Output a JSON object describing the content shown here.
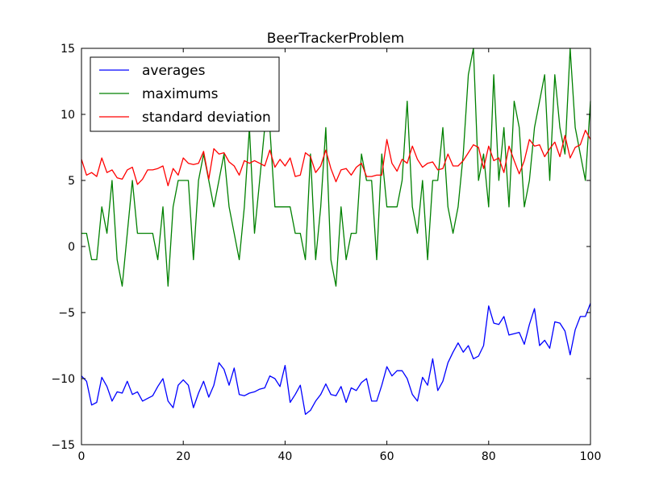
{
  "chart_data": {
    "type": "line",
    "title": "BeerTrackerProblem",
    "xlabel": "",
    "ylabel": "",
    "xlim": [
      0,
      100
    ],
    "ylim": [
      -15,
      15
    ],
    "xticks": [
      0,
      20,
      40,
      60,
      80,
      100
    ],
    "yticks": [
      -15,
      -10,
      -5,
      0,
      5,
      10,
      15
    ],
    "xtick_labels": [
      "0",
      "20",
      "40",
      "60",
      "80",
      "100"
    ],
    "ytick_labels": [
      "−15",
      "−10",
      "−5",
      "0",
      "5",
      "10",
      "15"
    ],
    "grid": false,
    "legend_position": "top-left",
    "x": [
      0,
      1,
      2,
      3,
      4,
      5,
      6,
      7,
      8,
      9,
      10,
      11,
      12,
      13,
      14,
      15,
      16,
      17,
      18,
      19,
      20,
      21,
      22,
      23,
      24,
      25,
      26,
      27,
      28,
      29,
      30,
      31,
      32,
      33,
      34,
      35,
      36,
      37,
      38,
      39,
      40,
      41,
      42,
      43,
      44,
      45,
      46,
      47,
      48,
      49,
      50,
      51,
      52,
      53,
      54,
      55,
      56,
      57,
      58,
      59,
      60,
      61,
      62,
      63,
      64,
      65,
      66,
      67,
      68,
      69,
      70,
      71,
      72,
      73,
      74,
      75,
      76,
      77,
      78,
      79,
      80,
      81,
      82,
      83,
      84,
      85,
      86,
      87,
      88,
      89,
      90,
      91,
      92,
      93,
      94,
      95,
      96,
      97,
      98,
      99,
      100
    ],
    "series": [
      {
        "name": "averages",
        "color": "#0000ff",
        "values": [
          -9.8,
          -10.2,
          -12.0,
          -11.8,
          -9.9,
          -10.6,
          -11.7,
          -11.0,
          -11.1,
          -10.2,
          -11.2,
          -11.0,
          -11.7,
          -11.5,
          -11.3,
          -10.6,
          -10.0,
          -11.7,
          -12.2,
          -10.5,
          -10.1,
          -10.5,
          -12.2,
          -11.1,
          -10.2,
          -11.4,
          -10.5,
          -8.8,
          -9.3,
          -10.5,
          -9.2,
          -11.2,
          -11.3,
          -11.1,
          -11.0,
          -10.8,
          -10.7,
          -9.8,
          -10.0,
          -10.6,
          -9.0,
          -11.8,
          -11.2,
          -10.5,
          -12.7,
          -12.4,
          -11.7,
          -11.2,
          -10.4,
          -11.2,
          -11.3,
          -10.6,
          -11.8,
          -10.7,
          -10.9,
          -10.3,
          -10.0,
          -11.7,
          -11.7,
          -10.5,
          -9.1,
          -9.8,
          -9.4,
          -9.4,
          -10.0,
          -11.2,
          -11.7,
          -9.9,
          -10.5,
          -8.5,
          -10.9,
          -10.2,
          -8.8,
          -8.0,
          -7.3,
          -8.0,
          -7.5,
          -8.5,
          -8.3,
          -7.5,
          -4.5,
          -5.8,
          -5.9,
          -5.3,
          -6.7,
          -6.6,
          -6.5,
          -7.4,
          -5.9,
          -4.7,
          -7.5,
          -7.1,
          -7.7,
          -5.7,
          -5.8,
          -6.4,
          -8.2,
          -6.3,
          -5.3,
          -5.3,
          -4.3
        ]
      },
      {
        "name": "maximums",
        "color": "#008000",
        "values": [
          1,
          1,
          -1,
          -1,
          3,
          1,
          5,
          -1,
          -3,
          1,
          5,
          1,
          1,
          1,
          1,
          -1,
          3,
          -3,
          3,
          5,
          5,
          5,
          -1,
          5,
          7,
          5,
          3,
          5,
          7,
          3,
          1,
          -1,
          3,
          9,
          1,
          5,
          9,
          9,
          3,
          3,
          3,
          3,
          1,
          1,
          -1,
          7,
          -1,
          3,
          9,
          -1,
          -3,
          3,
          -1,
          1,
          1,
          7,
          5,
          5,
          -1,
          7,
          3,
          3,
          3,
          5,
          11,
          3,
          1,
          5,
          -1,
          5,
          5,
          9,
          3,
          1,
          3,
          7,
          13,
          15,
          5,
          7,
          3,
          13,
          5,
          9,
          3,
          11,
          9,
          3,
          5,
          9,
          11,
          13,
          5,
          13,
          9,
          7,
          15,
          9,
          7,
          5,
          11
        ]
      },
      {
        "name": "standard deviation",
        "color": "#ff0000",
        "values": [
          6.6,
          5.4,
          5.6,
          5.3,
          6.7,
          5.6,
          5.8,
          5.2,
          5.1,
          5.8,
          6.0,
          4.7,
          5.1,
          5.8,
          5.8,
          5.9,
          6.1,
          4.6,
          5.9,
          5.4,
          6.7,
          6.3,
          6.2,
          6.3,
          7.2,
          5.1,
          7.4,
          7.0,
          7.1,
          6.4,
          6.1,
          5.4,
          6.5,
          6.3,
          6.5,
          6.3,
          6.1,
          7.3,
          6.0,
          6.6,
          6.1,
          6.7,
          5.3,
          5.4,
          7.1,
          6.8,
          5.6,
          6.1,
          7.3,
          5.9,
          4.9,
          5.8,
          5.9,
          5.4,
          6.0,
          6.3,
          5.3,
          5.3,
          5.4,
          5.4,
          8.1,
          6.3,
          5.7,
          6.6,
          6.3,
          7.6,
          6.6,
          6.0,
          6.3,
          6.4,
          5.8,
          5.9,
          7.0,
          6.1,
          6.1,
          6.5,
          7.1,
          7.7,
          7.5,
          5.9,
          7.6,
          6.5,
          6.7,
          5.6,
          7.6,
          6.5,
          5.5,
          6.5,
          8.1,
          7.6,
          7.7,
          6.8,
          7.4,
          7.9,
          6.8,
          8.4,
          6.7,
          7.5,
          7.7,
          8.8,
          8.1
        ]
      }
    ]
  }
}
